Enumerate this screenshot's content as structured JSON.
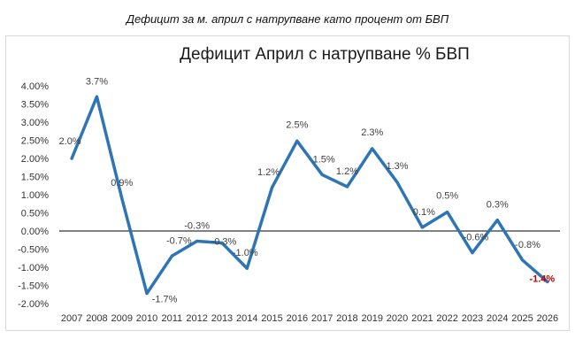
{
  "caption": "Дефицит за м. април с натрупване като процент от БВП",
  "chart_data": {
    "type": "line",
    "title": "Дефицит Април с натрупване % БВП",
    "xlabel": "",
    "ylabel": "",
    "ylim": [
      -2.0,
      4.0
    ],
    "y_ticks": [
      "4.00%",
      "3.50%",
      "3.00%",
      "2.50%",
      "2.00%",
      "1.50%",
      "1.00%",
      "0.50%",
      "0.00%",
      "-0.50%",
      "-1.00%",
      "-1.50%",
      "-2.00%"
    ],
    "y_tick_values": [
      4.0,
      3.5,
      3.0,
      2.5,
      2.0,
      1.5,
      1.0,
      0.5,
      0.0,
      -0.5,
      -1.0,
      -1.5,
      -2.0
    ],
    "categories": [
      "2007",
      "2008",
      "2009",
      "2010",
      "2011",
      "2012",
      "2013",
      "2014",
      "2015",
      "2016",
      "2017",
      "2018",
      "2019",
      "2020",
      "2021",
      "2022",
      "2023",
      "2024",
      "2025",
      "2026"
    ],
    "series": [
      {
        "values": [
          2.0,
          3.7,
          0.9,
          -1.72,
          -0.69,
          -0.28,
          -0.33,
          -1.03,
          1.2,
          2.48,
          1.55,
          1.22,
          2.27,
          1.34,
          0.1,
          0.52,
          -0.6,
          0.3,
          -0.8,
          -1.4
        ],
        "labels": [
          "2.0%",
          "3.7%",
          "0.9%",
          "-1.7%",
          "-0.7%",
          "-0.3%",
          "-0.3%",
          "-1.0%",
          "1.2%",
          "2.5%",
          "1.5%",
          "1.2%",
          "2.3%",
          "1.3%",
          "0.1%",
          "0.5%",
          "-0.6%",
          "0.3%",
          "-0.8%",
          "-1.4%"
        ],
        "color": "#2e75b6"
      }
    ],
    "highlight_label_color": "#c00000",
    "grid": false,
    "legend": "none"
  }
}
